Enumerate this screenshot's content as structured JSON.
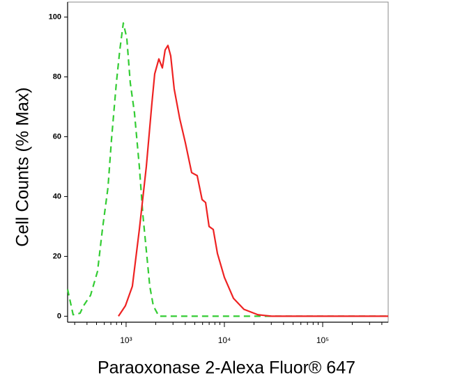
{
  "chart_data": {
    "type": "line",
    "x_label": "Paraoxonase 2-Alexa Fluor® 647",
    "y_label": "Cell Counts (% Max)",
    "x_scale": "log",
    "xlim": [
      254,
      464000
    ],
    "ylim": [
      -2,
      105
    ],
    "xticks": [
      {
        "value": 1000,
        "label": "10³"
      },
      {
        "value": 10000,
        "label": "10⁴"
      },
      {
        "value": 100000,
        "label": "10⁵"
      }
    ],
    "xminorticks": [
      300,
      400,
      500,
      600,
      700,
      800,
      900,
      2000,
      3000,
      4000,
      5000,
      6000,
      7000,
      8000,
      9000,
      20000,
      30000,
      40000,
      50000,
      60000,
      70000,
      80000,
      90000,
      200000,
      300000,
      400000
    ],
    "yticks": [
      0,
      20,
      40,
      60,
      80,
      100
    ],
    "series": [
      {
        "color": "#33cc33",
        "dashed": true,
        "x": [
          254,
          289,
          340,
          369,
          435,
          512,
          574,
          654,
          710,
          796,
          863,
          937,
          1016,
          1103,
          1216,
          1364,
          1480,
          1606,
          1742,
          1891,
          2154,
          464000
        ],
        "values": [
          9,
          0.5,
          1,
          3.5,
          7,
          15,
          29,
          43,
          59,
          78,
          89,
          98,
          93,
          78,
          68,
          50,
          34,
          22,
          10,
          3.5,
          0,
          0
        ]
      },
      {
        "color": "#ee2222",
        "dashed": false,
        "x": [
          836,
          984,
          1158,
          1364,
          1606,
          1828,
          1954,
          2154,
          2338,
          2495,
          2664,
          2844,
          3084,
          3514,
          4006,
          4643,
          5288,
          5929,
          6439,
          6984,
          7704,
          8492,
          10000,
          12360,
          15800,
          21900,
          30300,
          464000
        ],
        "values": [
          0,
          3.5,
          10,
          29,
          50,
          71,
          81,
          86,
          83,
          89,
          90.5,
          87,
          76,
          66,
          58,
          48,
          47,
          39,
          38,
          30,
          29,
          21,
          13,
          6,
          2.3,
          0.5,
          0,
          0
        ]
      }
    ]
  }
}
